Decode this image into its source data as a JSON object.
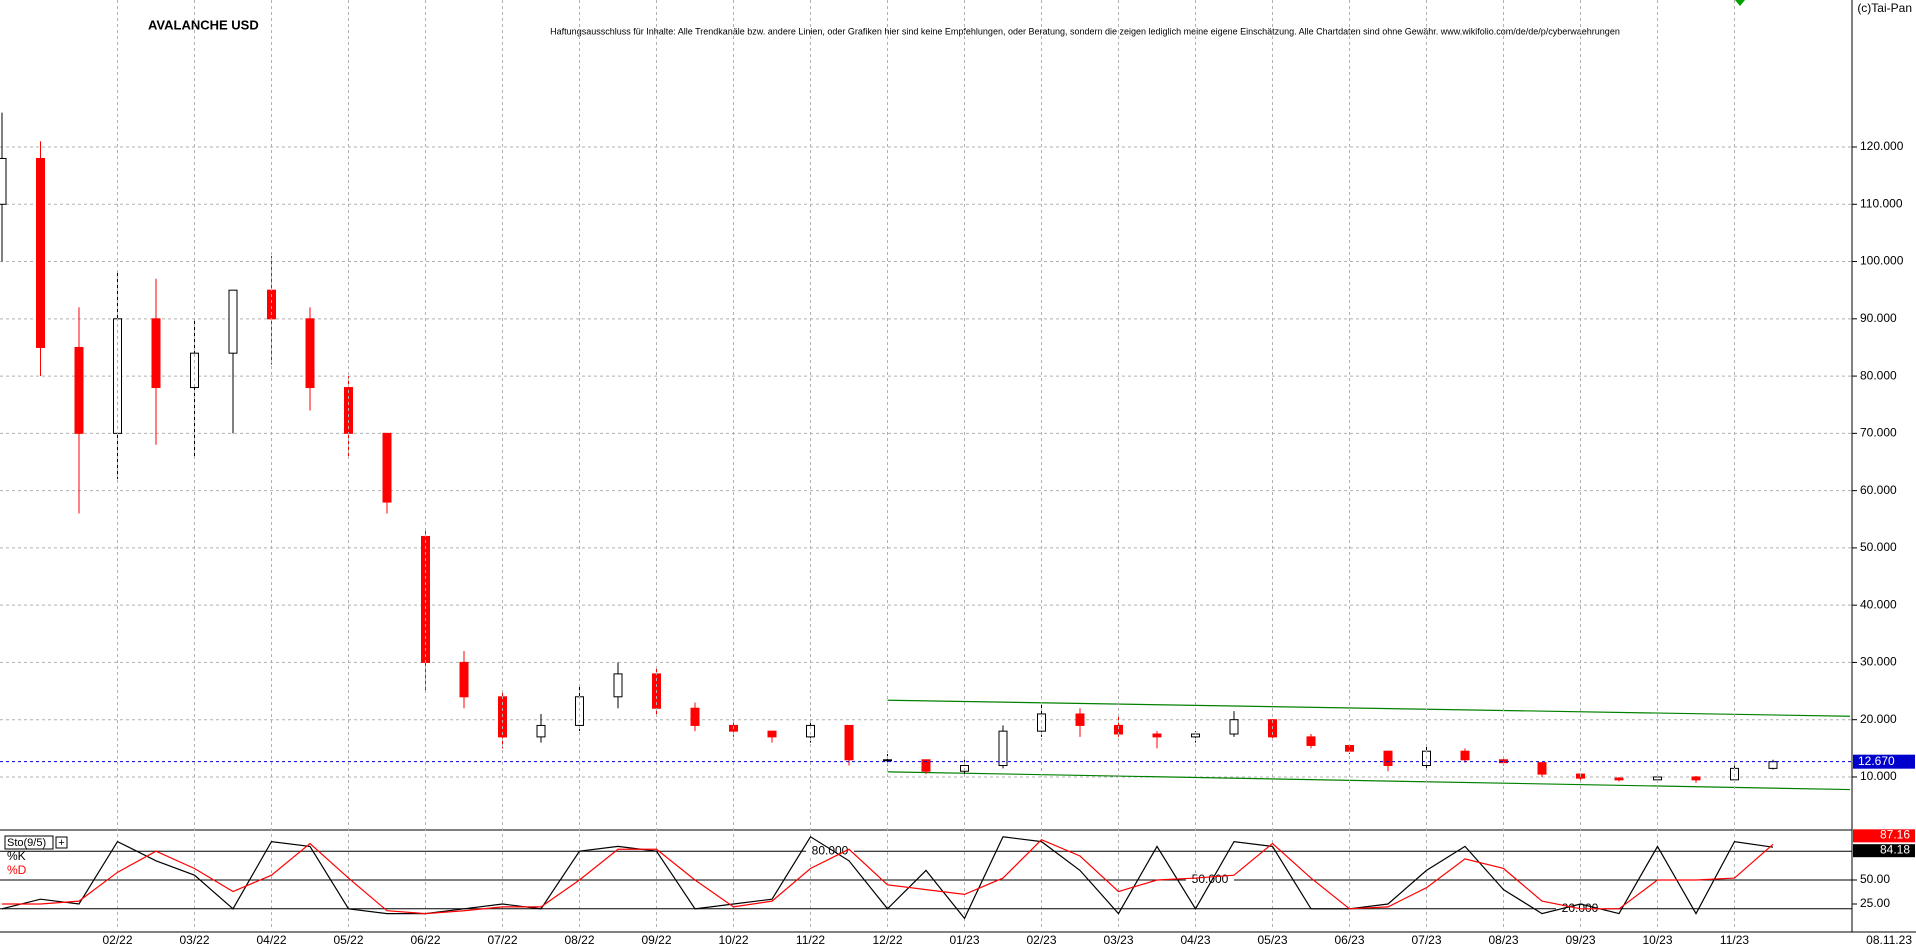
{
  "chart_data": [
    {
      "type": "candlestick",
      "title": "AVALANCHE USD",
      "subtitle": "Haftungsausschluss für Inhalte: Alle Trendkanäle bzw. andere Linien, oder Grafiken hier sind keine Empfehlungen, oder Beratung, sondern die zeigen lediglich meine eigene Einschätzung. Alle Chartdaten sind ohne Gewähr. www.wikifolio.com/de/de/p/cyberwaehrungen",
      "source": "(c)Tai-Pan",
      "open": [
        110,
        118,
        85,
        70,
        90,
        78,
        84,
        95,
        90,
        78,
        70,
        52,
        30,
        24,
        17,
        19,
        24,
        28,
        22,
        19,
        18,
        17,
        19,
        13,
        13,
        11,
        12,
        18,
        21,
        19,
        17.5,
        17,
        17.5,
        20,
        17,
        15.5,
        14.5,
        12,
        14.5,
        13,
        12.5,
        10.5,
        9.8,
        9.5,
        10,
        9.5,
        11.5
      ],
      "high": [
        126,
        121,
        92,
        98,
        97,
        90,
        95,
        101,
        92,
        80,
        70,
        53,
        32,
        25,
        21,
        26,
        30,
        29,
        23,
        20,
        18,
        20,
        19,
        14,
        13,
        13,
        19,
        23,
        22,
        21,
        18,
        18,
        21.5,
        20,
        17.5,
        15.5,
        14.5,
        15.5,
        15,
        13.5,
        12.5,
        10.5,
        10,
        10.5,
        10.2,
        12,
        13
      ],
      "low": [
        100,
        80,
        56,
        62,
        68,
        66,
        70,
        82,
        74,
        66,
        56,
        25,
        22,
        15,
        16,
        18,
        22,
        21,
        18,
        17,
        16,
        16,
        12,
        12,
        10.5,
        10.5,
        11.5,
        17,
        17,
        17,
        15,
        16,
        17,
        16.5,
        15,
        14,
        11,
        11.5,
        12.5,
        12,
        10,
        9.5,
        9.2,
        9,
        9,
        9.5,
        11.3
      ],
      "close": [
        118,
        85,
        70,
        90,
        78,
        84,
        95,
        90,
        78,
        70,
        58,
        30,
        24,
        17,
        19,
        24,
        28,
        22,
        19,
        18,
        17,
        19,
        13,
        13,
        11,
        12,
        18,
        21,
        19,
        17.5,
        17,
        17.5,
        20,
        17,
        15.5,
        14.5,
        12,
        14.5,
        13,
        12.5,
        10.5,
        9.8,
        9.5,
        10,
        9.5,
        11.5,
        12.67
      ],
      "up_color": "#000000",
      "down_color": "#ff0000",
      "last": {
        "value": 12.67,
        "label": "12.670",
        "color": "#0000cc"
      },
      "trendlines": [
        {
          "x": [
            23,
            48
          ],
          "y": [
            23.4,
            20.6
          ]
        },
        {
          "x": [
            23,
            48
          ],
          "y": [
            10.9,
            7.8
          ]
        }
      ],
      "trend_color": "#008000",
      "ylim": [
        0.74,
        145.67
      ],
      "yticks": [
        {
          "value": 10,
          "label": "10.000"
        },
        {
          "value": 20,
          "label": "20.000"
        },
        {
          "value": 30,
          "label": "30.000"
        },
        {
          "value": 40,
          "label": "40.000"
        },
        {
          "value": 50,
          "label": "50.000"
        },
        {
          "value": 60,
          "label": "60.000"
        },
        {
          "value": 70,
          "label": "70.000"
        },
        {
          "value": 80,
          "label": "80.000"
        },
        {
          "value": 90,
          "label": "90.000"
        },
        {
          "value": 100,
          "label": "100.000"
        },
        {
          "value": 110,
          "label": "110.000"
        },
        {
          "value": 120,
          "label": "120.000"
        }
      ],
      "grid": true
    },
    {
      "type": "line",
      "title": "Sto(9/5)",
      "categories": [
        null,
        null,
        null,
        "02/22",
        null,
        "03/22",
        null,
        "04/22",
        null,
        "05/22",
        null,
        "06/22",
        null,
        "07/22",
        null,
        "08/22",
        null,
        "09/22",
        null,
        "10/22",
        null,
        "11/22",
        null,
        "12/22",
        null,
        "01/23",
        null,
        "02/23",
        null,
        "03/23",
        null,
        "04/23",
        null,
        "05/23",
        null,
        "06/23",
        null,
        "07/23",
        null,
        "08/23",
        null,
        "09/23",
        null,
        "10/23",
        null,
        "11/23",
        null
      ],
      "end_label": "08.11.23",
      "series": [
        {
          "name": "%K",
          "color": "#000000",
          "values": [
            20,
            30,
            25,
            90,
            70,
            55,
            20,
            90,
            85,
            20,
            15,
            15,
            20,
            25,
            20,
            80,
            85,
            80,
            20,
            25,
            30,
            95,
            70,
            20,
            60,
            10,
            95,
            90,
            60,
            15,
            85,
            20,
            90,
            85,
            20,
            20,
            25,
            60,
            85,
            40,
            15,
            25,
            15,
            85,
            15,
            90,
            84.18
          ]
        },
        {
          "name": "%D",
          "color": "#ff0000",
          "values": [
            25,
            25,
            28,
            58,
            80,
            62,
            38,
            55,
            88,
            52,
            18,
            15,
            18,
            22,
            22,
            50,
            82,
            82,
            50,
            22,
            28,
            62,
            82,
            45,
            40,
            35,
            52,
            92,
            75,
            38,
            50,
            52,
            55,
            88,
            52,
            20,
            22,
            42,
            72,
            62,
            28,
            20,
            20,
            50,
            50,
            52,
            87.16
          ]
        }
      ],
      "levels": [
        {
          "value": 80,
          "label": "80.000"
        },
        {
          "value": 50,
          "label": "50.000"
        },
        {
          "value": 20,
          "label": "20.000"
        }
      ],
      "ylim": [
        0,
        100
      ],
      "yticks": [
        {
          "value": 25,
          "label": "25.00"
        },
        {
          "value": 50,
          "label": "50.00"
        }
      ],
      "grid": true
    }
  ]
}
